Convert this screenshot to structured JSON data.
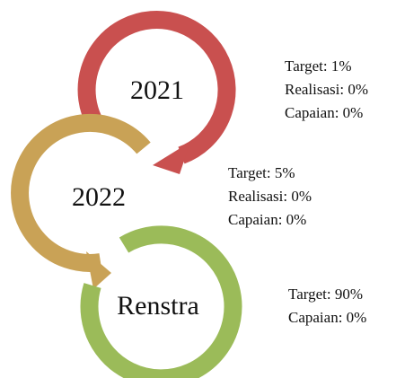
{
  "nodes": [
    {
      "label": "2021",
      "lines": [
        "Target: 1%",
        "Realisasi: 0%",
        "Capaian: 0%"
      ]
    },
    {
      "label": "2022",
      "lines": [
        "Target: 5%",
        "Realisasi: 0%",
        "Capaian: 0%"
      ]
    },
    {
      "label": "Renstra",
      "lines": [
        "Target: 90%",
        "Capaian: 0%"
      ]
    }
  ]
}
